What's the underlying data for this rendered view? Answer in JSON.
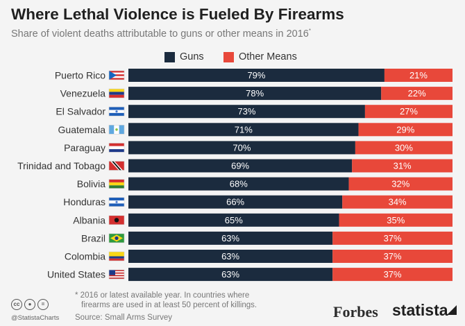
{
  "header": {
    "title": "Where Lethal Violence is Fueled By Firearms",
    "subtitle": "Share of violent deaths attributable to guns or other means in 2016",
    "subtitle_mark": "*"
  },
  "colors": {
    "guns": "#1b2b3e",
    "other": "#e8483a"
  },
  "chart_data": {
    "type": "bar",
    "orientation": "horizontal-stacked-100",
    "categories": [
      "Puerto Rico",
      "Venezuela",
      "El Salvador",
      "Guatemala",
      "Paraguay",
      "Trinidad and Tobago",
      "Bolivia",
      "Honduras",
      "Albania",
      "Brazil",
      "Colombia",
      "United States"
    ],
    "series": [
      {
        "name": "Guns",
        "values": [
          79,
          78,
          73,
          71,
          70,
          69,
          68,
          66,
          65,
          63,
          63,
          63
        ],
        "labels": [
          "79%",
          "78%",
          "73%",
          "71%",
          "70%",
          "69%",
          "68%",
          "66%",
          "65%",
          "63%",
          "63%",
          "63%"
        ]
      },
      {
        "name": "Other Means",
        "values": [
          21,
          22,
          27,
          29,
          30,
          31,
          32,
          34,
          35,
          37,
          37,
          37
        ],
        "labels": [
          "21%",
          "22%",
          "27%",
          "29%",
          "30%",
          "31%",
          "32%",
          "34%",
          "35%",
          "37%",
          "37%",
          "37%"
        ]
      }
    ],
    "flags": [
      "puerto-rico-flag",
      "venezuela-flag",
      "el-salvador-flag",
      "guatemala-flag",
      "paraguay-flag",
      "trinidad-and-tobago-flag",
      "bolivia-flag",
      "honduras-flag",
      "albania-flag",
      "brazil-flag",
      "colombia-flag",
      "united-states-flag"
    ],
    "legend_position": "top-center",
    "grid": false,
    "xlim": [
      0,
      100
    ]
  },
  "footer": {
    "note_line1": "* 2016 or latest available year. In countries where",
    "note_line2": "firearms are used in at least 50 percent of killings.",
    "source": "Source: Small Arms Survey",
    "handle": "@StatistaCharts",
    "forbes": "Forbes",
    "statista": "statista"
  }
}
